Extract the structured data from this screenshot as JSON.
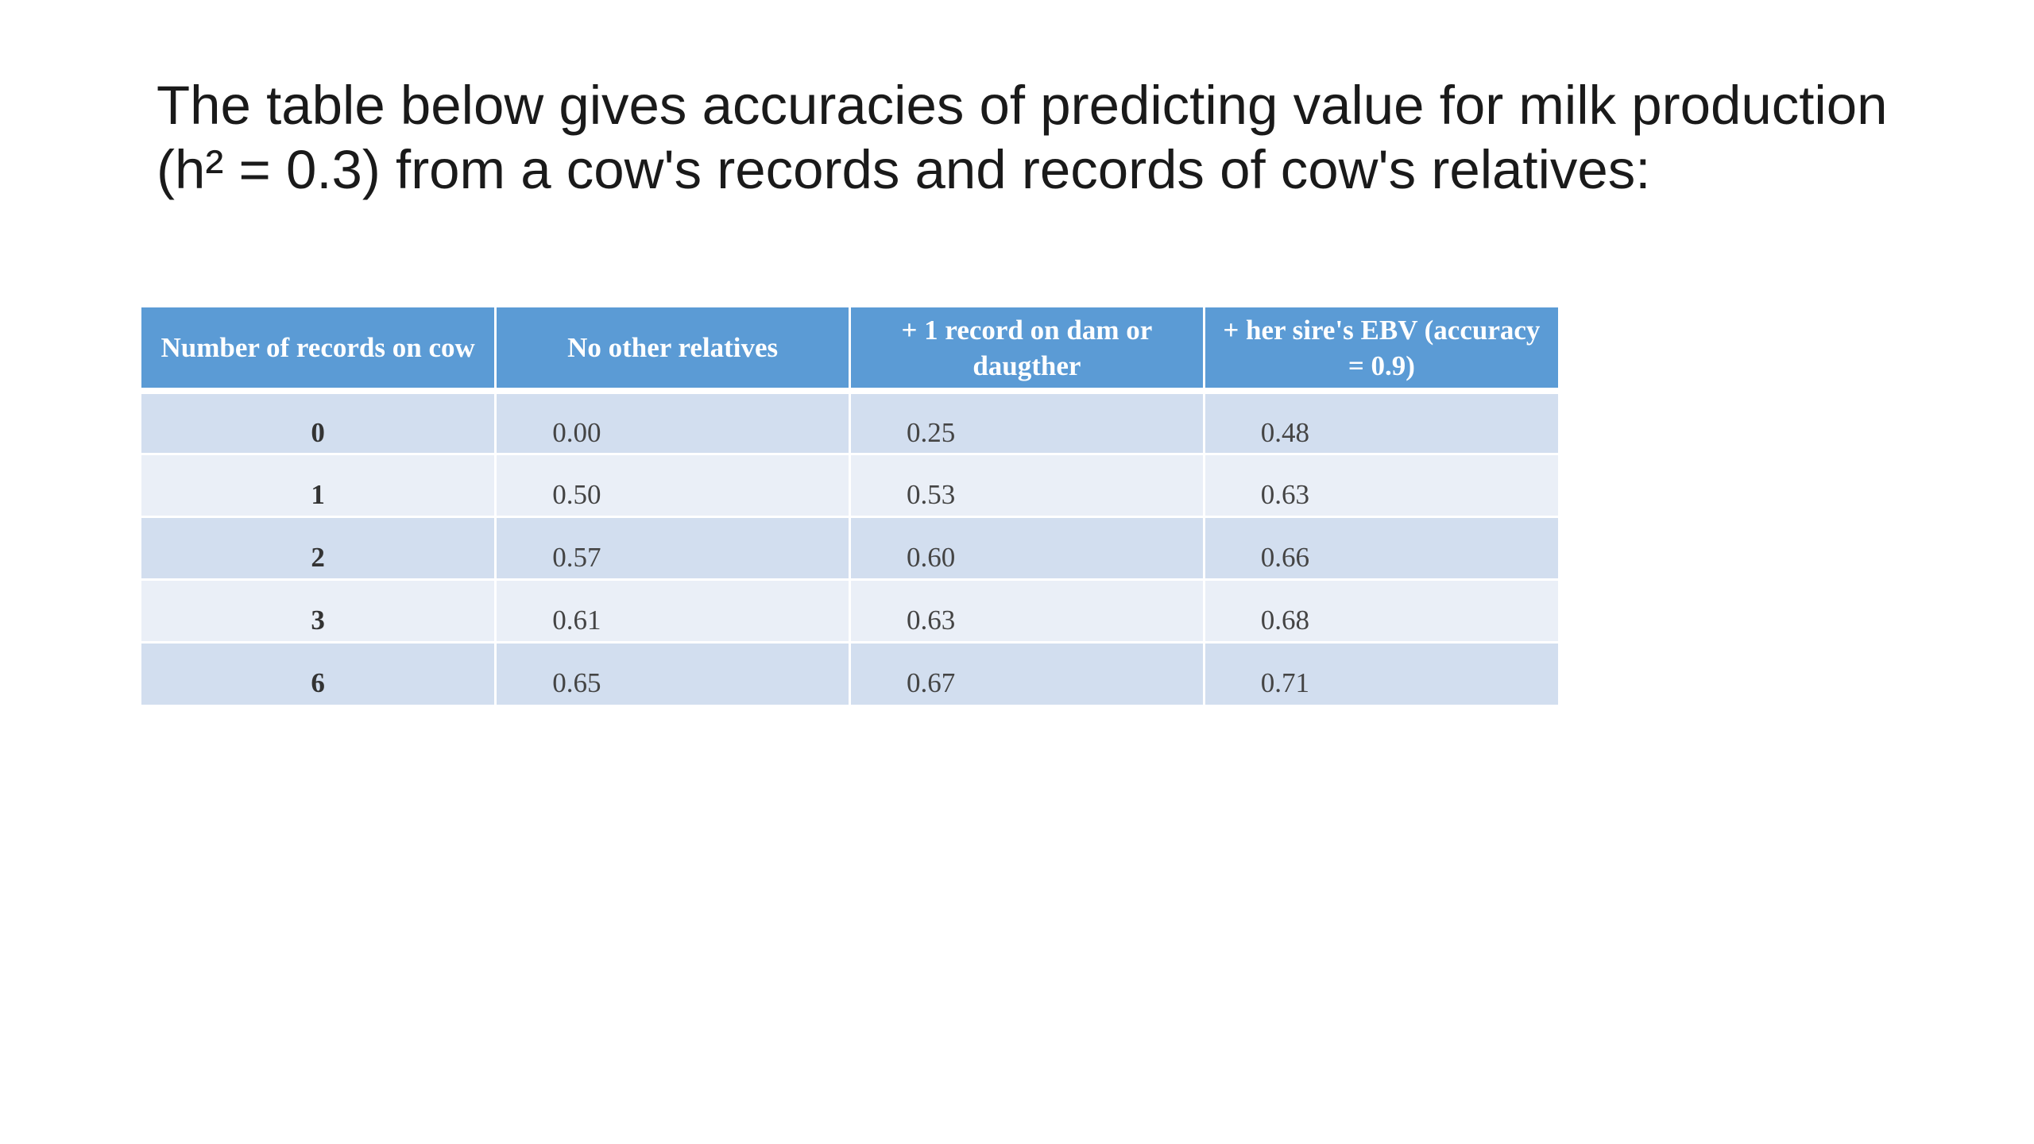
{
  "title": {
    "line1": "The table below gives accuracies of predicting value for milk production",
    "line2": "(h² = 0.3) from a cow's records and records of cow's relatives:"
  },
  "table": {
    "headers": [
      "Number of records on cow",
      "No other relatives",
      "+ 1 record on dam or daugther",
      "+ her sire's EBV (accuracy = 0.9)"
    ],
    "rows": [
      [
        "0",
        "0.00",
        "0.25",
        "0.48"
      ],
      [
        "1",
        "0.50",
        "0.53",
        "0.63"
      ],
      [
        "2",
        "0.57",
        "0.60",
        "0.66"
      ],
      [
        "3",
        "0.61",
        "0.63",
        "0.68"
      ],
      [
        "6",
        "0.65",
        "0.67",
        "0.71"
      ]
    ]
  },
  "colors": {
    "header_bg": "#5b9bd5",
    "row_odd_bg": "#d2deef",
    "row_even_bg": "#eaeff7"
  }
}
